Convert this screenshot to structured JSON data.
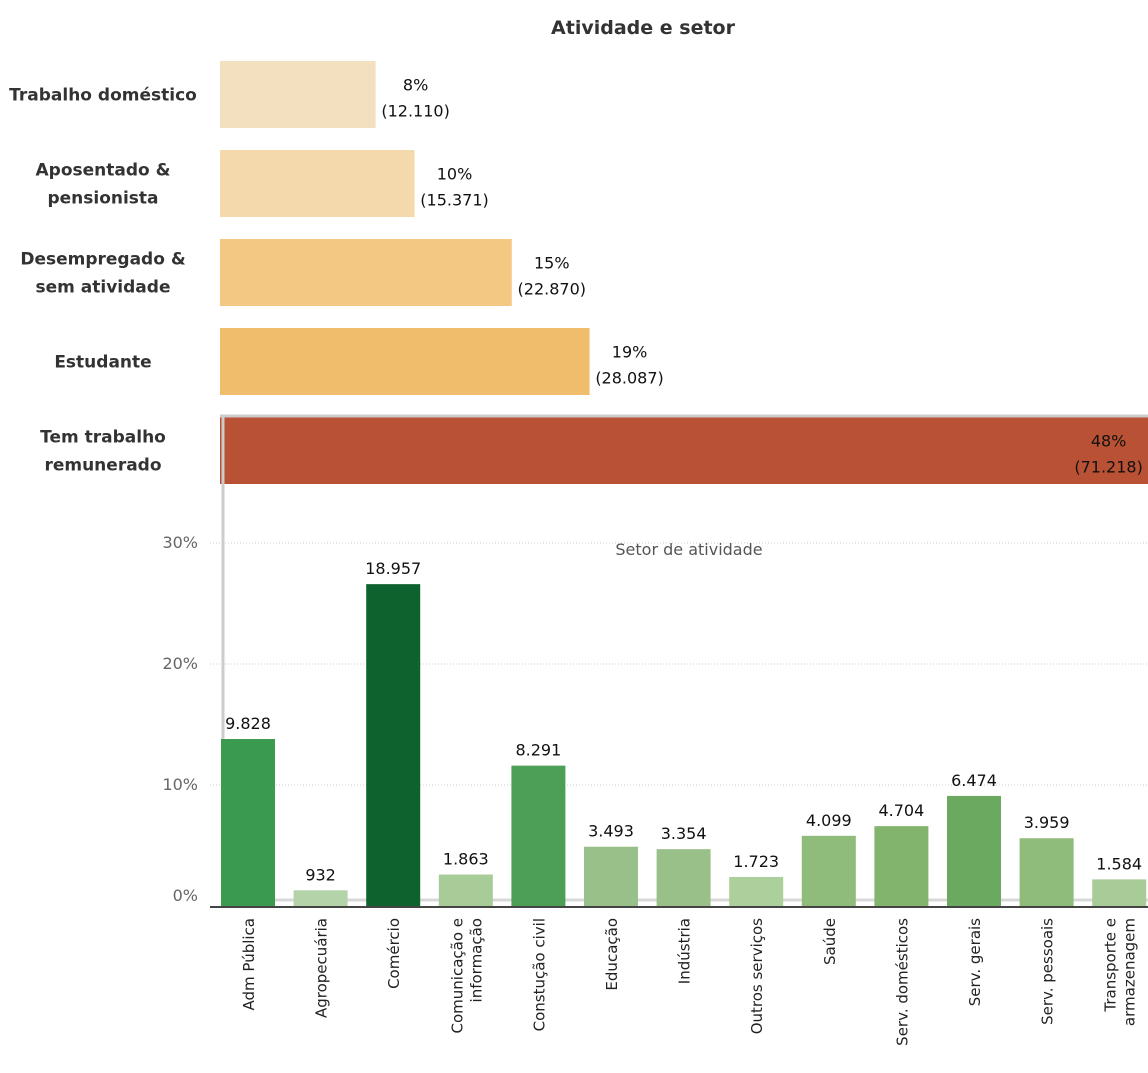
{
  "chart_data": [
    {
      "type": "bar",
      "orientation": "horizontal",
      "title": "Atividade e setor",
      "categories": [
        [
          "Trabalho doméstico"
        ],
        [
          "Aposentado &",
          "pensionista"
        ],
        [
          "Desempregado &",
          "sem atividade"
        ],
        [
          "Estudante"
        ],
        [
          "Tem trabalho",
          "remunerado"
        ]
      ],
      "values": [
        8,
        10,
        15,
        19,
        48
      ],
      "counts": [
        "12.110",
        "15.371",
        "22.870",
        "28.087",
        "71.218"
      ],
      "value_labels": [
        "8%",
        "10%",
        "15%",
        "19%",
        "48%"
      ],
      "count_labels": [
        "(12.110)",
        "(15.371)",
        "(22.870)",
        "(28.087)",
        "(71.218)"
      ],
      "colors": [
        "#f3e0bf",
        "#f3d9ab",
        "#f2c882",
        "#f0bd6c",
        "#b95135"
      ],
      "unit": "%"
    },
    {
      "type": "bar",
      "title": "Setor de atividade",
      "categories": [
        [
          "Adm Pública"
        ],
        [
          "Agropecuária"
        ],
        [
          "Comércio"
        ],
        [
          "Comunicação e",
          "informação"
        ],
        [
          "Constução civil"
        ],
        [
          "Educação"
        ],
        [
          "Indústria"
        ],
        [
          "Outros serviços"
        ],
        [
          "Saúde"
        ],
        [
          "Serv. domésticos"
        ],
        [
          "Serv. gerais"
        ],
        [
          "Serv. pessoais"
        ],
        [
          "Transporte e",
          "armazenagem"
        ]
      ],
      "values": [
        13.8,
        1.3,
        26.6,
        2.6,
        11.6,
        4.9,
        4.7,
        2.4,
        5.8,
        6.6,
        9.1,
        5.6,
        2.2
      ],
      "value_labels": [
        "9.828",
        "932",
        "18.957",
        "1.863",
        "8.291",
        "3.493",
        "3.354",
        "1.723",
        "4.099",
        "4.704",
        "6.474",
        "3.959",
        "1.584"
      ],
      "colors": [
        "#3a9a4f",
        "#b4d3a8",
        "#0e622e",
        "#a8cc98",
        "#4e9f56",
        "#9ac08a",
        "#9ac08a",
        "#acd09c",
        "#8fbc7a",
        "#82b46d",
        "#6aa95f",
        "#8fbc7a",
        "#a8cc98"
      ],
      "ylim": [
        0,
        30
      ],
      "yticks": [
        "0%",
        "10%",
        "20%",
        "30%"
      ],
      "ytick_values": [
        0,
        10,
        20,
        30
      ],
      "grid": true
    }
  ]
}
